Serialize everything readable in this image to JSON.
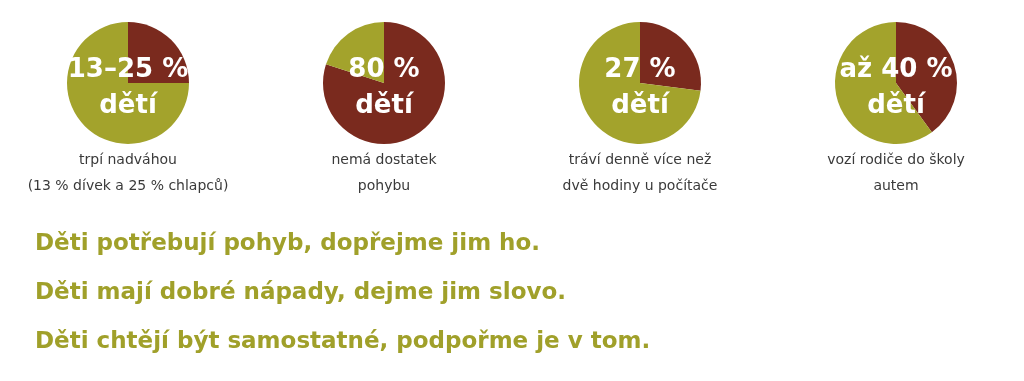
{
  "chart_data": [
    {
      "type": "pie",
      "categories": [
        null,
        null
      ],
      "values": [
        25,
        75
      ],
      "colors": [
        "#7a2a1e",
        "#a3a32c"
      ],
      "annotations": [
        "13–25 %",
        "dětí",
        "trpí nadváhou",
        "(13 % dívek a 25 % chlapců)"
      ]
    },
    {
      "type": "pie",
      "categories": [
        null,
        null
      ],
      "values": [
        80,
        20
      ],
      "colors": [
        "#7a2a1e",
        "#a3a32c"
      ],
      "annotations": [
        "80 %",
        "dětí",
        "nemá dostatek",
        "pohybu"
      ]
    },
    {
      "type": "pie",
      "categories": [
        null,
        null
      ],
      "values": [
        27,
        73
      ],
      "colors": [
        "#7a2a1e",
        "#a3a32c"
      ],
      "annotations": [
        "27 %",
        "dětí",
        "tráví denně více než",
        "dvě hodiny u počítače"
      ]
    },
    {
      "type": "pie",
      "categories": [
        null,
        null
      ],
      "values": [
        40,
        60
      ],
      "colors": [
        "#7a2a1e",
        "#a3a32c"
      ],
      "annotations": [
        "až 40 %",
        "dětí",
        "vozí rodiče do školy",
        "autem"
      ]
    },
    {
      "type": "other",
      "annotations": [
        "Děti potřebují pohyb, dopřejme jim ho.",
        "Děti mají dobré nápady, dejme jim slovo.",
        "Děti chtějí být samostatné, podpořme je v tom."
      ]
    }
  ]
}
